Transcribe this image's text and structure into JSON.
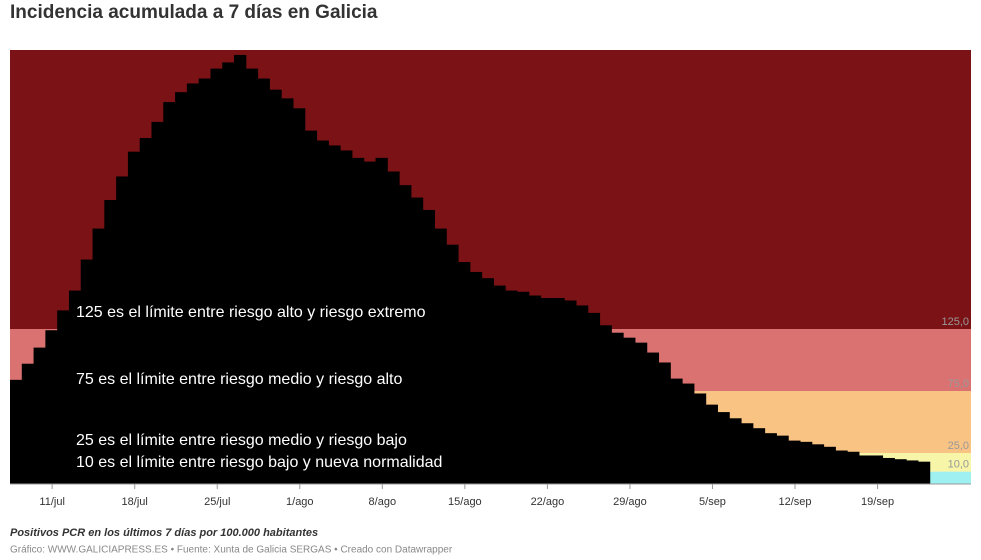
{
  "chart_data": {
    "type": "step-area",
    "title": "Incidencia acumulada a 7 días en Galicia",
    "categories": [
      null,
      null,
      null,
      null,
      "11/jul",
      null,
      null,
      null,
      null,
      null,
      null,
      "18/jul",
      null,
      null,
      null,
      null,
      null,
      null,
      "25/jul",
      null,
      null,
      null,
      null,
      null,
      null,
      "1/ago",
      null,
      null,
      null,
      null,
      null,
      null,
      "8/ago",
      null,
      null,
      null,
      null,
      null,
      null,
      "15/ago",
      null,
      null,
      null,
      null,
      null,
      null,
      "22/ago",
      null,
      null,
      null,
      null,
      null,
      null,
      "29/ago",
      null,
      null,
      null,
      null,
      null,
      null,
      "5/sep",
      null,
      null,
      null,
      null,
      null,
      null,
      "12/sep",
      null,
      null,
      null,
      null,
      null,
      null,
      "19/sep",
      null,
      null,
      null
    ],
    "values": [
      84,
      97,
      110,
      124,
      140,
      156,
      181,
      206,
      229,
      248,
      268,
      279,
      292,
      308,
      316,
      323,
      327,
      335,
      340,
      346,
      335,
      327,
      318,
      311,
      303,
      285,
      277,
      273,
      269,
      263,
      260,
      263,
      252,
      241,
      231,
      221,
      206,
      193,
      179,
      171,
      166,
      160,
      156,
      155,
      152,
      150,
      150,
      148,
      144,
      138,
      128,
      122,
      118,
      114,
      106,
      98,
      85,
      81,
      73,
      64,
      58,
      53,
      49,
      45,
      41,
      39,
      35,
      34,
      32,
      30,
      27,
      26,
      23,
      23,
      21,
      20,
      19,
      18
    ],
    "color": "#000000",
    "ylim": [
      0,
      350
    ],
    "thresholds": [
      {
        "value": 10,
        "label": "10,0"
      },
      {
        "value": 25,
        "label": "25,0"
      },
      {
        "value": 75,
        "label": "75,0"
      },
      {
        "value": 125,
        "label": "125,0"
      }
    ],
    "band_colors": [
      "#9ff0f0",
      "#f7f5a8",
      "#f9c384",
      "#d97270",
      "#7b1215"
    ],
    "annotations": [
      "125 es el límite entre riesgo alto y riesgo extremo",
      "75 es el límite entre riesgo medio y riesgo alto",
      "25 es el límite entre riesgo medio y riesgo bajo",
      "10 es el límite entre riesgo bajo y nueva normalidad"
    ],
    "note": "Positivos PCR en los últimos 7 días por 100.000 habitantes",
    "source": "Gráfico: WWW.GALICIAPRESS.ES • Fuente: Xunta de Galicia SERGAS • Creado con Datawrapper"
  }
}
